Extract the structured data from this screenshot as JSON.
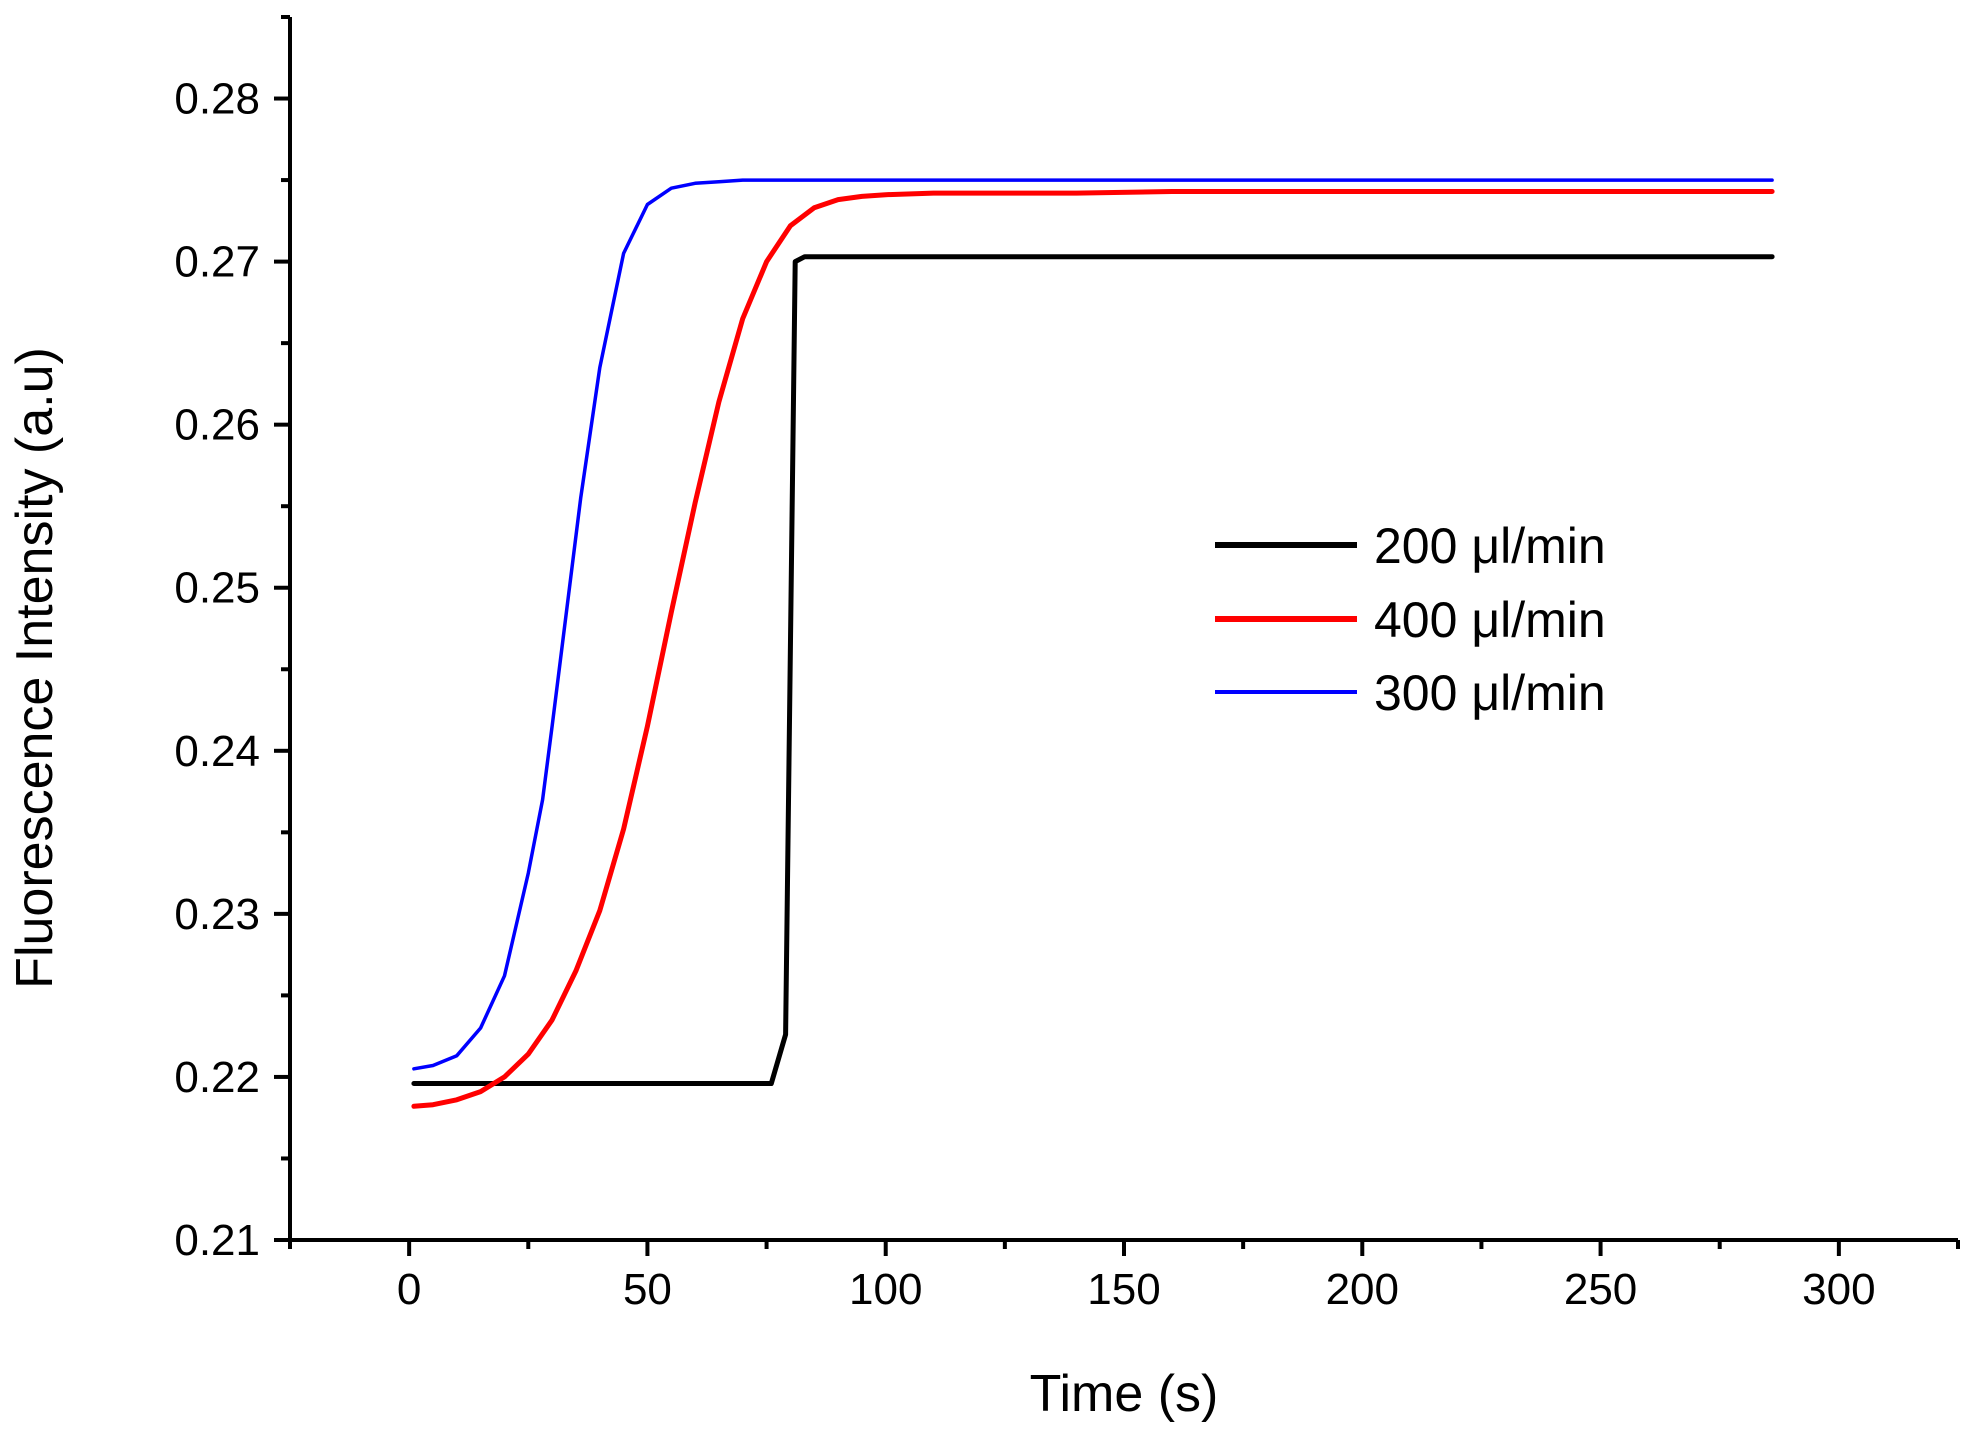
{
  "chart_data": {
    "type": "line",
    "title": "",
    "xlabel": "Time (s)",
    "ylabel": "Fluorescence Intensity (a.u)",
    "xlim": [
      -25,
      325
    ],
    "ylim": [
      0.21,
      0.285
    ],
    "xticks": [
      0,
      50,
      100,
      150,
      200,
      250,
      300
    ],
    "xtick_labels": [
      "0",
      "50",
      "100",
      "150",
      "200",
      "250",
      "300"
    ],
    "xminor": [
      -25,
      25,
      75,
      125,
      175,
      225,
      275,
      325
    ],
    "yticks": [
      0.21,
      0.22,
      0.23,
      0.24,
      0.25,
      0.26,
      0.27,
      0.28
    ],
    "ytick_labels": [
      "0.21",
      "0.22",
      "0.23",
      "0.24",
      "0.25",
      "0.26",
      "0.27",
      "0.28"
    ],
    "yminor": [
      0.215,
      0.225,
      0.235,
      0.245,
      0.255,
      0.265,
      0.275,
      0.285
    ],
    "grid": false,
    "legend_position": "center-right",
    "series": [
      {
        "name": "200 μl/min",
        "color": "#000000",
        "x": [
          1,
          76,
          79,
          81,
          83,
          85,
          286
        ],
        "y": [
          0.2196,
          0.2196,
          0.2226,
          0.27,
          0.2703,
          0.2703,
          0.2703
        ]
      },
      {
        "name": "400 μl/min",
        "color": "#ff0000",
        "x": [
          1,
          5,
          10,
          15,
          20,
          25,
          30,
          35,
          40,
          45,
          50,
          55,
          60,
          65,
          70,
          75,
          80,
          85,
          90,
          95,
          100,
          110,
          120,
          140,
          160,
          200,
          250,
          286
        ],
        "y": [
          0.2182,
          0.2183,
          0.2186,
          0.2191,
          0.22,
          0.2214,
          0.2235,
          0.2265,
          0.2302,
          0.2352,
          0.2415,
          0.2485,
          0.2552,
          0.2614,
          0.2665,
          0.27,
          0.2722,
          0.2733,
          0.2738,
          0.274,
          0.2741,
          0.2742,
          0.2742,
          0.2742,
          0.2743,
          0.2743,
          0.2743,
          0.2743
        ]
      },
      {
        "name": "300 μl/min",
        "color": "#0000ff",
        "x": [
          1,
          5,
          10,
          15,
          20,
          25,
          28,
          30,
          33,
          36,
          40,
          45,
          50,
          55,
          60,
          65,
          70,
          75,
          80,
          90,
          100,
          150,
          200,
          286
        ],
        "y": [
          0.2205,
          0.2207,
          0.2213,
          0.223,
          0.2262,
          0.2325,
          0.237,
          0.2415,
          0.2485,
          0.2555,
          0.2635,
          0.2705,
          0.2735,
          0.2745,
          0.2748,
          0.2749,
          0.275,
          0.275,
          0.275,
          0.275,
          0.275,
          0.275,
          0.275,
          0.275
        ]
      }
    ]
  }
}
